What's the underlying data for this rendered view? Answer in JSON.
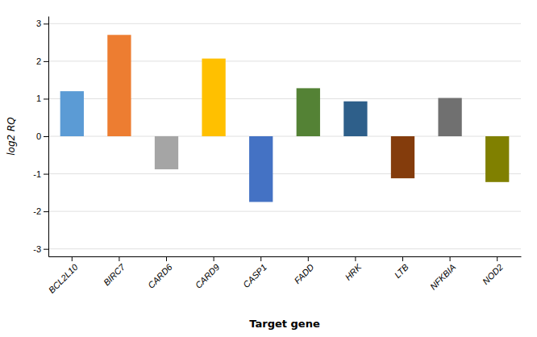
{
  "chart_data": {
    "type": "bar",
    "categories": [
      "BCL2L10",
      "BIRC7",
      "CARD6",
      "CARD9",
      "CASP1",
      "FADD",
      "HRK",
      "LTB",
      "NFKBIA",
      "NOD2"
    ],
    "values": [
      1.2,
      2.7,
      -0.88,
      2.07,
      -1.75,
      1.28,
      0.93,
      -1.12,
      1.02,
      -1.22
    ],
    "colors": [
      "#5b9bd5",
      "#ed7d31",
      "#a5a5a5",
      "#ffc000",
      "#4472c4",
      "#548235",
      "#2e5f8a",
      "#843c0c",
      "#707070",
      "#808000"
    ],
    "ylabel": "log2 RQ",
    "xlabel": "Target gene",
    "ylim": [
      -3.2,
      3.2
    ],
    "yticks": [
      -3,
      -2,
      -1,
      0,
      1,
      2,
      3
    ],
    "grid": true
  }
}
